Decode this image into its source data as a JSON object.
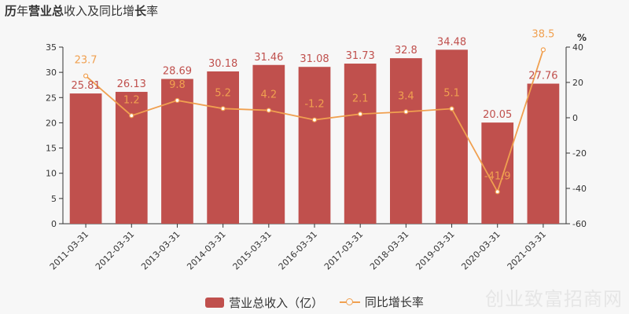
{
  "title": {
    "parts": [
      {
        "text": "历",
        "bold": true
      },
      {
        "text": "年",
        "bold": false
      },
      {
        "text": "营业总",
        "bold": true
      },
      {
        "text": "收入及同比增",
        "bold": false
      },
      {
        "text": "长",
        "bold": true
      },
      {
        "text": "率",
        "bold": false
      }
    ]
  },
  "watermark": "创业致富招商网",
  "colors": {
    "bar": "#c0504d",
    "line": "#f0a050",
    "bar_label": "#c0504d",
    "line_label": "#f0a050"
  },
  "chart_data": {
    "type": "bar",
    "categories": [
      "2011-03-31",
      "2012-03-31",
      "2013-03-31",
      "2014-03-31",
      "2015-03-31",
      "2016-03-31",
      "2017-03-31",
      "2018-03-31",
      "2019-03-31",
      "2020-03-31",
      "2021-03-31"
    ],
    "series": [
      {
        "name": "营业总收入（亿）",
        "type": "bar",
        "axis": "left",
        "values": [
          25.81,
          26.13,
          28.69,
          30.18,
          31.46,
          31.08,
          31.73,
          32.8,
          34.48,
          20.05,
          27.76
        ],
        "labels": [
          "25.81",
          "26.13",
          "28.69",
          "30.18",
          "31.46",
          "31.08",
          "31.73",
          "32.8",
          "34.48",
          "20.05",
          "27.76"
        ]
      },
      {
        "name": "同比增长率",
        "type": "line",
        "axis": "right",
        "values": [
          23.7,
          1.2,
          9.8,
          5.2,
          4.2,
          -1.2,
          2.1,
          3.4,
          5.1,
          -41.9,
          38.5
        ],
        "labels": [
          "23.7",
          "1.2",
          "9.8",
          "5.2",
          "4.2",
          "-1.2",
          "2.1",
          "3.4",
          "5.1",
          "-41.9",
          "38.5"
        ]
      }
    ],
    "y_left": {
      "lim": [
        0,
        35
      ],
      "ticks": [
        "0",
        "5",
        "10",
        "15",
        "20",
        "25",
        "30",
        "35"
      ],
      "tick_values": [
        0,
        5,
        10,
        15,
        20,
        25,
        30,
        35
      ]
    },
    "y_right": {
      "lim": [
        -60,
        40
      ],
      "label": "%",
      "ticks": [
        "-60",
        "-40",
        "-20",
        "0",
        "20",
        "40"
      ],
      "tick_values": [
        -60,
        -40,
        -20,
        0,
        20,
        40
      ]
    },
    "legend_position": "bottom-center",
    "grid": false
  }
}
